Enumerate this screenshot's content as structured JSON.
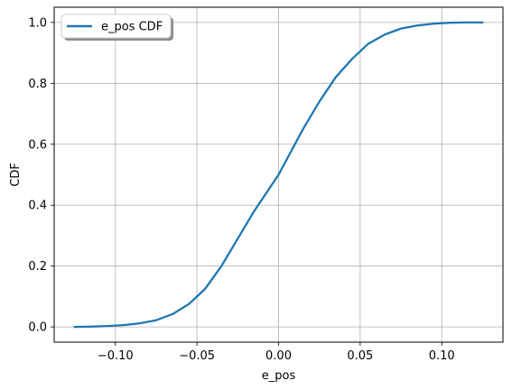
{
  "chart_data": {
    "type": "line",
    "title": "",
    "xlabel": "e_pos",
    "ylabel": "CDF",
    "xlim": [
      -0.1375,
      0.1375
    ],
    "ylim": [
      -0.05,
      1.05
    ],
    "grid": true,
    "legend_position": "upper-left",
    "x_ticks": [
      {
        "value": -0.1,
        "label": "−0.10"
      },
      {
        "value": -0.05,
        "label": "−0.05"
      },
      {
        "value": 0.0,
        "label": "0.00"
      },
      {
        "value": 0.05,
        "label": "0.05"
      },
      {
        "value": 0.1,
        "label": "0.10"
      }
    ],
    "y_ticks": [
      {
        "value": 0.0,
        "label": "0.0"
      },
      {
        "value": 0.2,
        "label": "0.2"
      },
      {
        "value": 0.4,
        "label": "0.4"
      },
      {
        "value": 0.6,
        "label": "0.6"
      },
      {
        "value": 0.8,
        "label": "0.8"
      },
      {
        "value": 1.0,
        "label": "1.0"
      }
    ],
    "series": [
      {
        "name": "e_pos CDF",
        "color": "#1f77b4",
        "x": [
          -0.125,
          -0.115,
          -0.105,
          -0.095,
          -0.085,
          -0.075,
          -0.065,
          -0.055,
          -0.045,
          -0.035,
          -0.025,
          -0.015,
          -0.005,
          0.0,
          0.005,
          0.015,
          0.025,
          0.035,
          0.045,
          0.055,
          0.065,
          0.075,
          0.085,
          0.095,
          0.105,
          0.115,
          0.125
        ],
        "y": [
          0.0,
          0.001,
          0.003,
          0.006,
          0.012,
          0.022,
          0.042,
          0.075,
          0.125,
          0.2,
          0.29,
          0.38,
          0.46,
          0.5,
          0.55,
          0.65,
          0.74,
          0.82,
          0.88,
          0.93,
          0.96,
          0.98,
          0.99,
          0.996,
          0.999,
          1.0,
          1.0
        ]
      }
    ]
  }
}
